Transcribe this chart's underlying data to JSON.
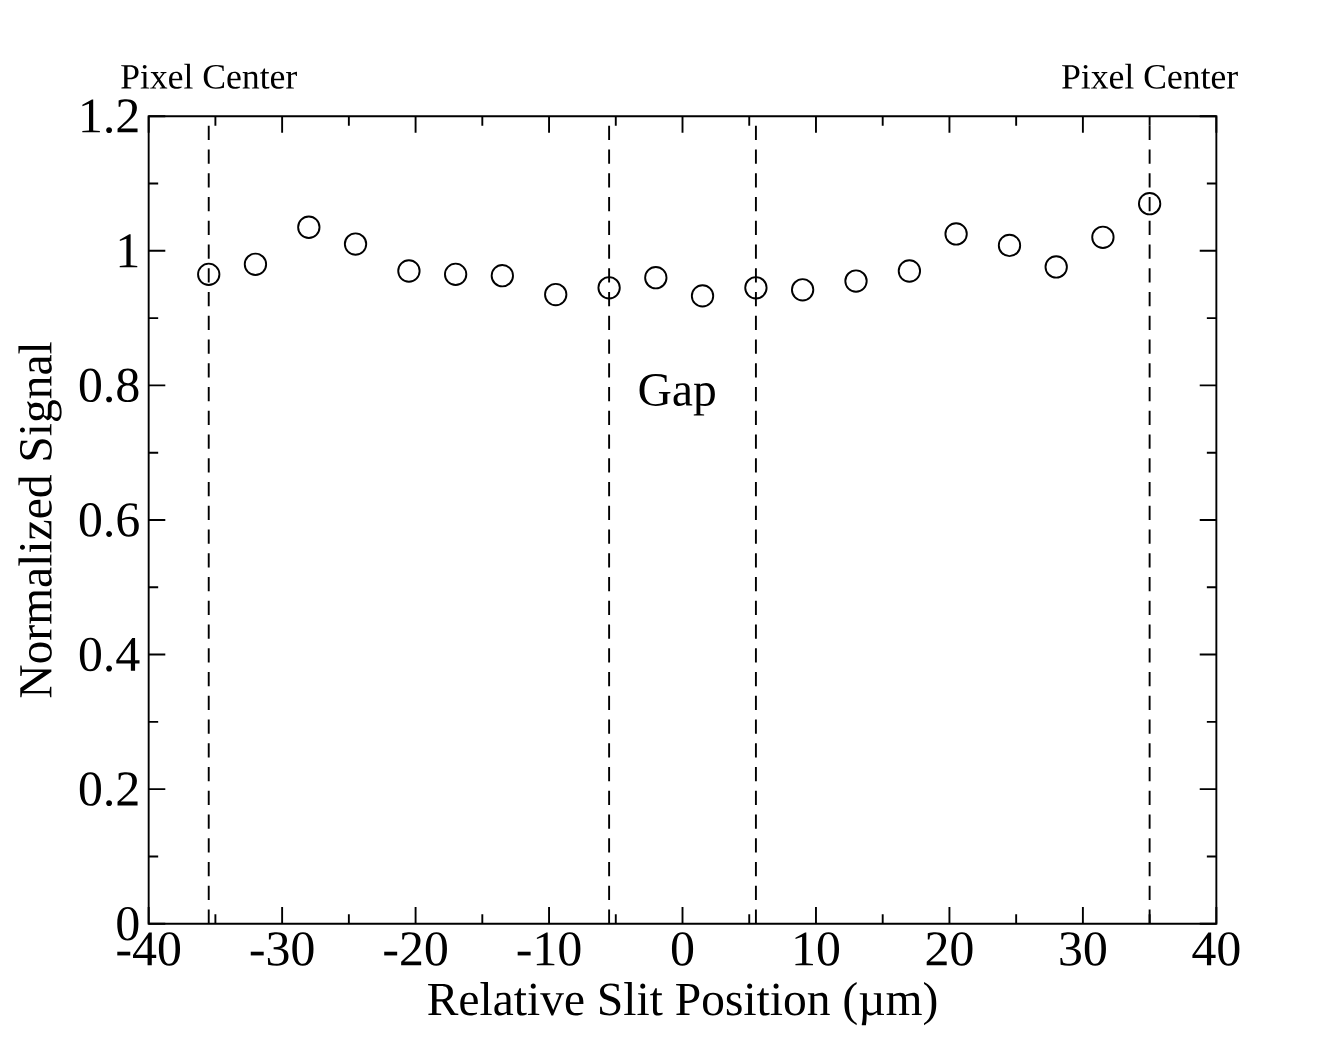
{
  "chart_data": {
    "type": "scatter",
    "xlabel": "Relative Slit Position (µm)",
    "ylabel": "Normalized Signal",
    "x": [
      -35.5,
      -32,
      -28,
      -24.5,
      -20.5,
      -17,
      -13.5,
      -9.5,
      -5.5,
      -2,
      1.5,
      5.5,
      9,
      13,
      17,
      20.5,
      24.5,
      28,
      31.5,
      35
    ],
    "values": [
      0.965,
      0.98,
      1.035,
      1.01,
      0.97,
      0.965,
      0.963,
      0.935,
      0.945,
      0.96,
      0.933,
      0.945,
      0.942,
      0.955,
      0.97,
      1.025,
      1.008,
      0.976,
      1.02,
      1.07
    ],
    "color": "#000000",
    "marker": "circle",
    "grid": false,
    "xlim": [
      -40,
      40
    ],
    "xticks": [
      -40,
      -30,
      -20,
      -10,
      0,
      10,
      20,
      30,
      40
    ],
    "ylim": [
      0,
      1.2
    ],
    "yticks": [
      0,
      0.2,
      0.4,
      0.6,
      0.8,
      1,
      1.2
    ],
    "ref_lines": [
      {
        "axis": "x",
        "value": -35.5,
        "label": "Pixel Center",
        "line_style": "dashed"
      },
      {
        "axis": "x",
        "value": -5.5,
        "line_style": "dashed"
      },
      {
        "axis": "x",
        "value": 5.5,
        "line_style": "dashed"
      },
      {
        "axis": "x",
        "value": 35,
        "label": "Pixel Center",
        "line_style": "dashed"
      }
    ],
    "annotations": [
      "Gap"
    ]
  }
}
